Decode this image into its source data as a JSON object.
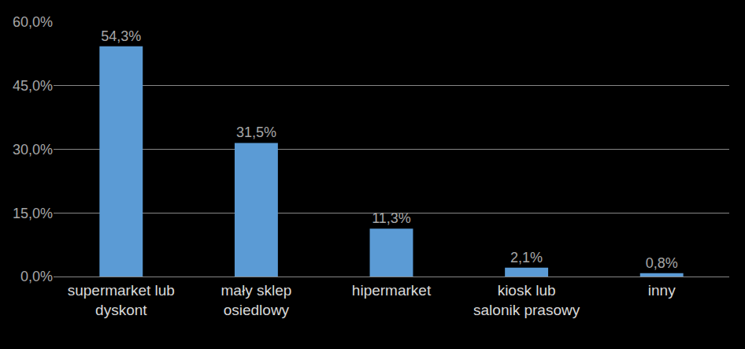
{
  "chart_data": {
    "type": "bar",
    "categories": [
      "supermarket lub dyskont",
      "mały sklep osiedlowy",
      "hipermarket",
      "kiosk lub salonik prasowy",
      "inny"
    ],
    "values": [
      54.3,
      31.5,
      11.3,
      2.1,
      0.8
    ],
    "value_labels": [
      "54,3%",
      "31,5%",
      "11,3%",
      "2,1%",
      "0,8%"
    ],
    "color": "#5b9bd5",
    "ylim": [
      0,
      60
    ],
    "yticks": [
      {
        "value": 0,
        "label": "0,0%"
      },
      {
        "value": 15,
        "label": "15,0%"
      },
      {
        "value": 30,
        "label": "30,0%"
      },
      {
        "value": 45,
        "label": "45,0%"
      },
      {
        "value": 60,
        "label": "60,0%"
      }
    ],
    "grid": true,
    "data_labels": true
  }
}
